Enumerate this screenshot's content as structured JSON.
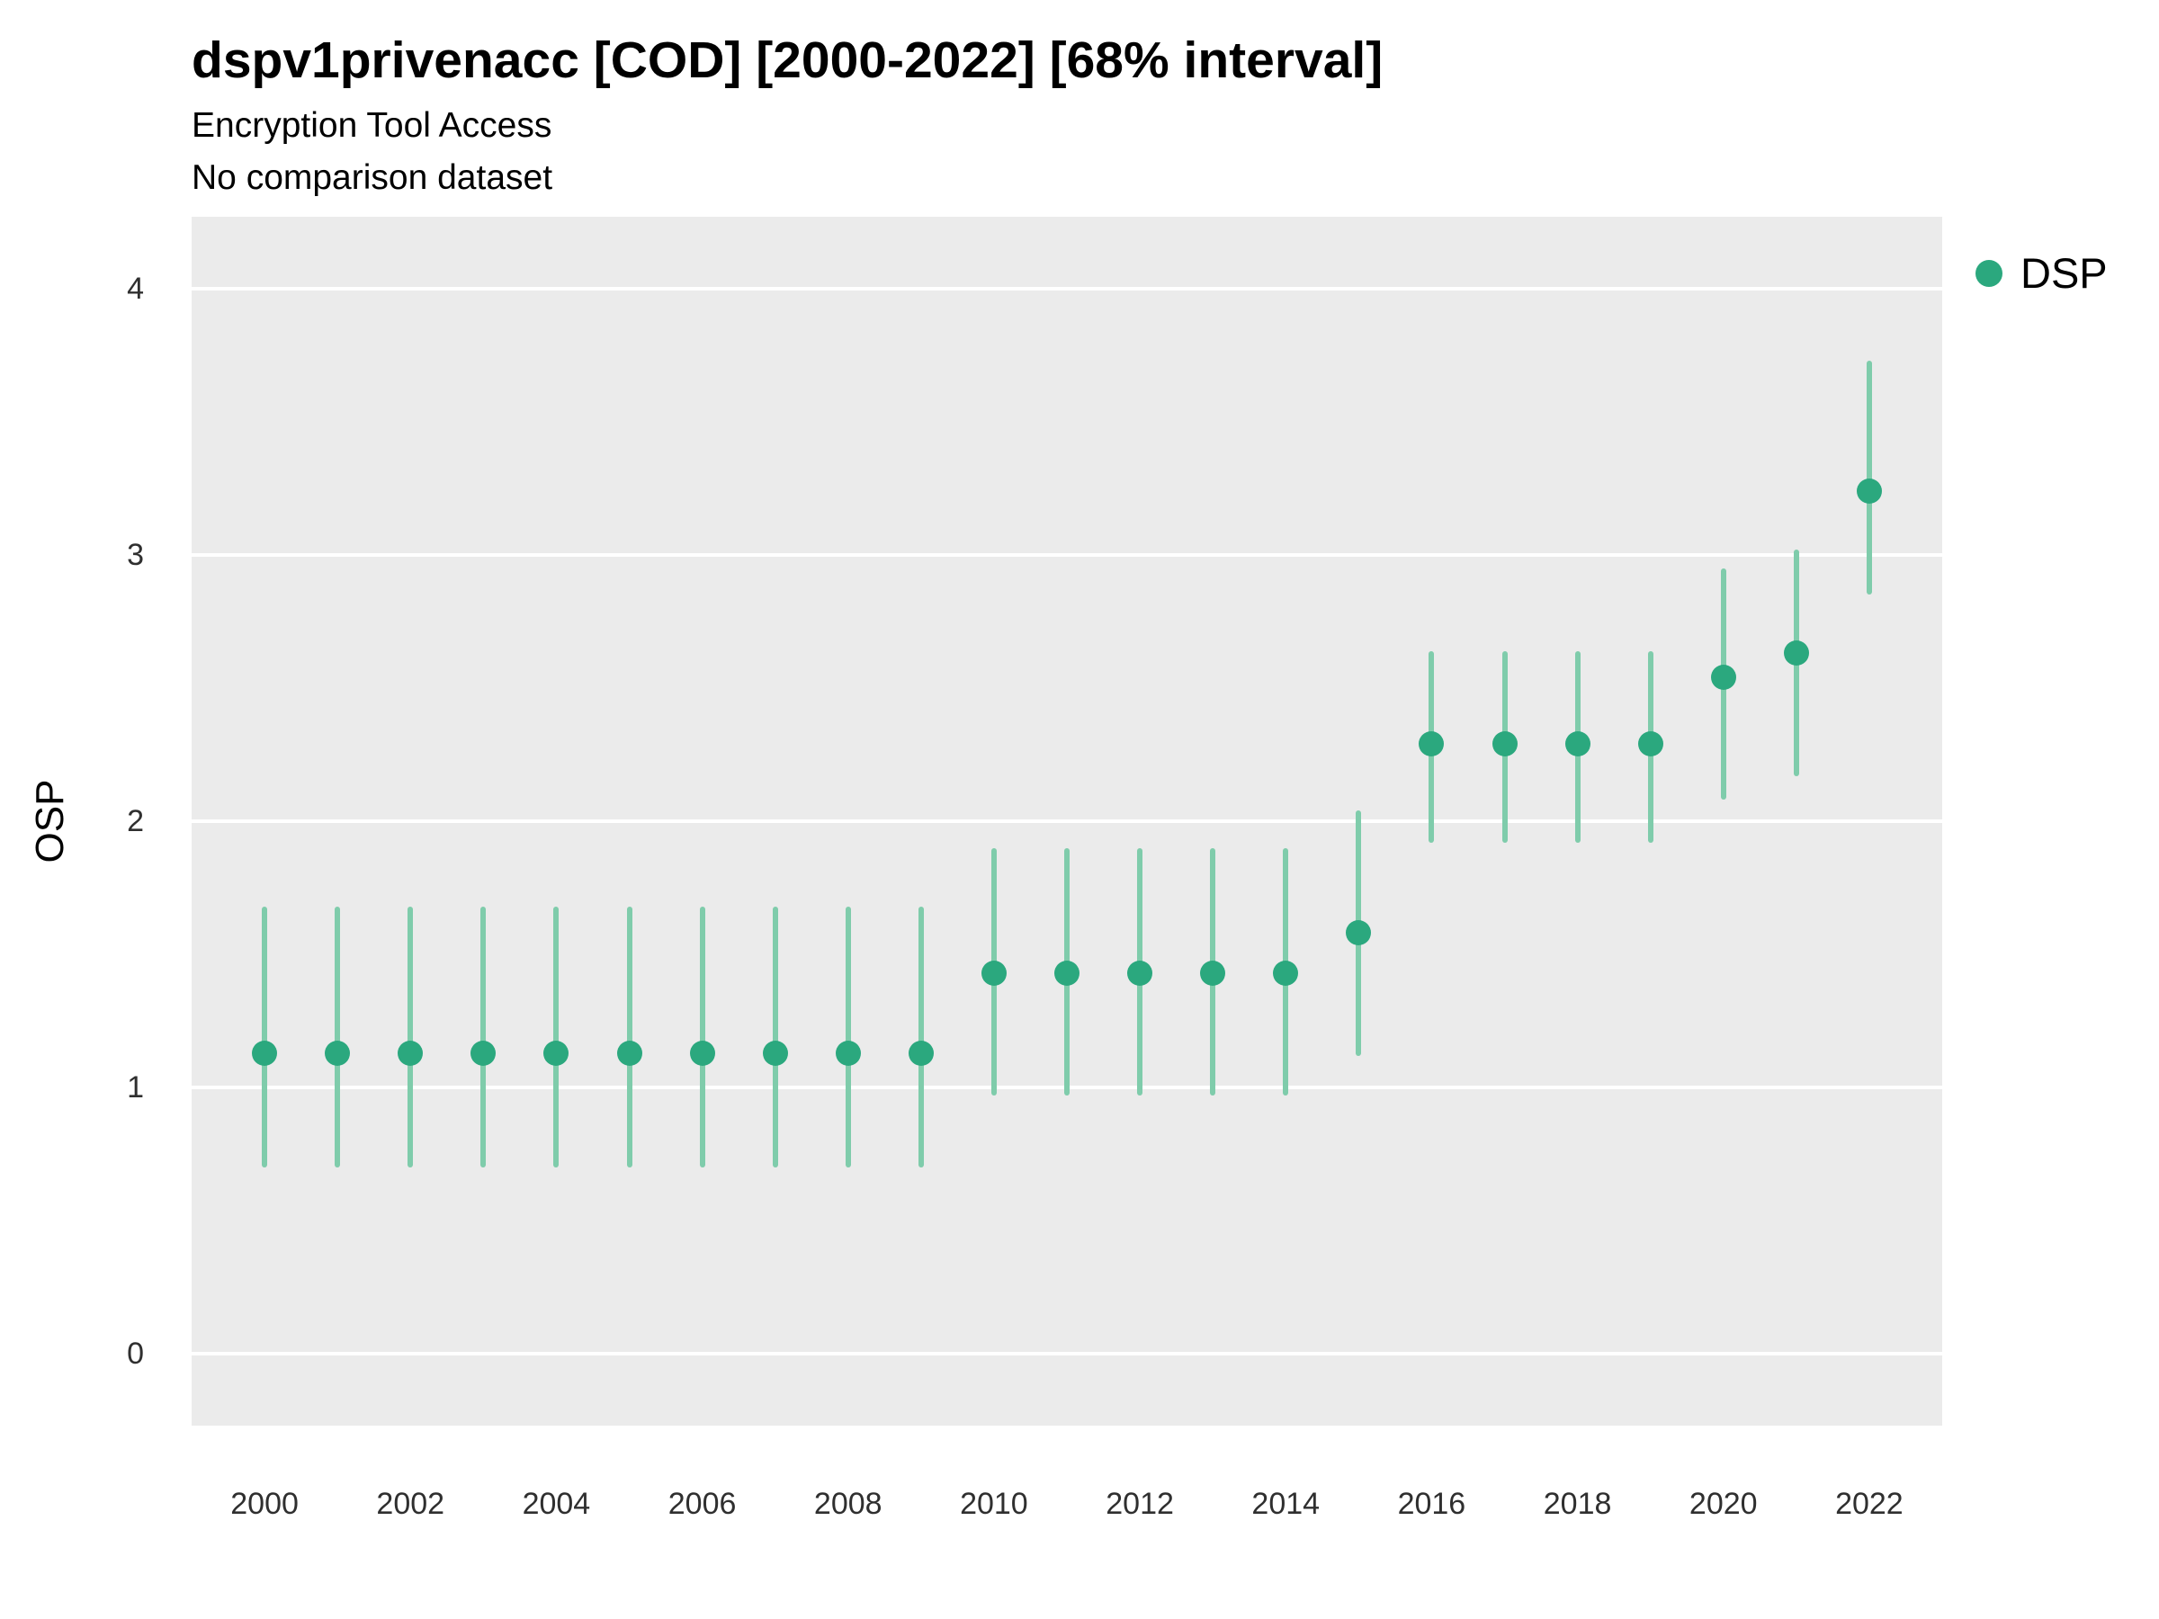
{
  "chart_data": {
    "type": "scatter",
    "title": "dspv1privenacc [COD] [2000-2022] [68% interval]",
    "subtitle": "Encryption Tool Access",
    "note": "No comparison dataset",
    "xlabel": "",
    "ylabel": "OSP",
    "interval_label": "68% interval",
    "legend_position": "right",
    "grid": true,
    "x": [
      2000,
      2001,
      2002,
      2003,
      2004,
      2005,
      2006,
      2007,
      2008,
      2009,
      2010,
      2011,
      2012,
      2013,
      2014,
      2015,
      2016,
      2017,
      2018,
      2019,
      2020,
      2021,
      2022
    ],
    "series": [
      {
        "name": "DSP",
        "values": [
          1.13,
          1.13,
          1.13,
          1.13,
          1.13,
          1.13,
          1.13,
          1.13,
          1.13,
          1.13,
          1.43,
          1.43,
          1.43,
          1.43,
          1.43,
          1.58,
          2.29,
          2.29,
          2.29,
          2.29,
          2.54,
          2.63,
          3.24
        ],
        "lower": [
          0.7,
          0.7,
          0.7,
          0.7,
          0.7,
          0.7,
          0.7,
          0.7,
          0.7,
          0.7,
          0.97,
          0.97,
          0.97,
          0.97,
          0.97,
          1.12,
          1.92,
          1.92,
          1.92,
          1.92,
          2.08,
          2.17,
          2.85
        ],
        "upper": [
          1.68,
          1.68,
          1.68,
          1.68,
          1.68,
          1.68,
          1.68,
          1.68,
          1.68,
          1.68,
          1.9,
          1.9,
          1.9,
          1.9,
          1.9,
          2.04,
          2.64,
          2.64,
          2.64,
          2.64,
          2.95,
          3.02,
          3.73
        ]
      }
    ],
    "y_ticks": [
      0,
      1,
      2,
      3,
      4
    ],
    "x_ticks": [
      2000,
      2002,
      2004,
      2006,
      2008,
      2010,
      2012,
      2014,
      2016,
      2018,
      2020,
      2022
    ],
    "xlim": [
      1999,
      2023
    ],
    "ylim": [
      -0.27,
      4.27
    ],
    "colors": {
      "point": "#2ba87e",
      "errorbar": "#7fccab",
      "panel": "#ebebeb",
      "gridline": "#ffffff",
      "text": "#000000"
    }
  }
}
